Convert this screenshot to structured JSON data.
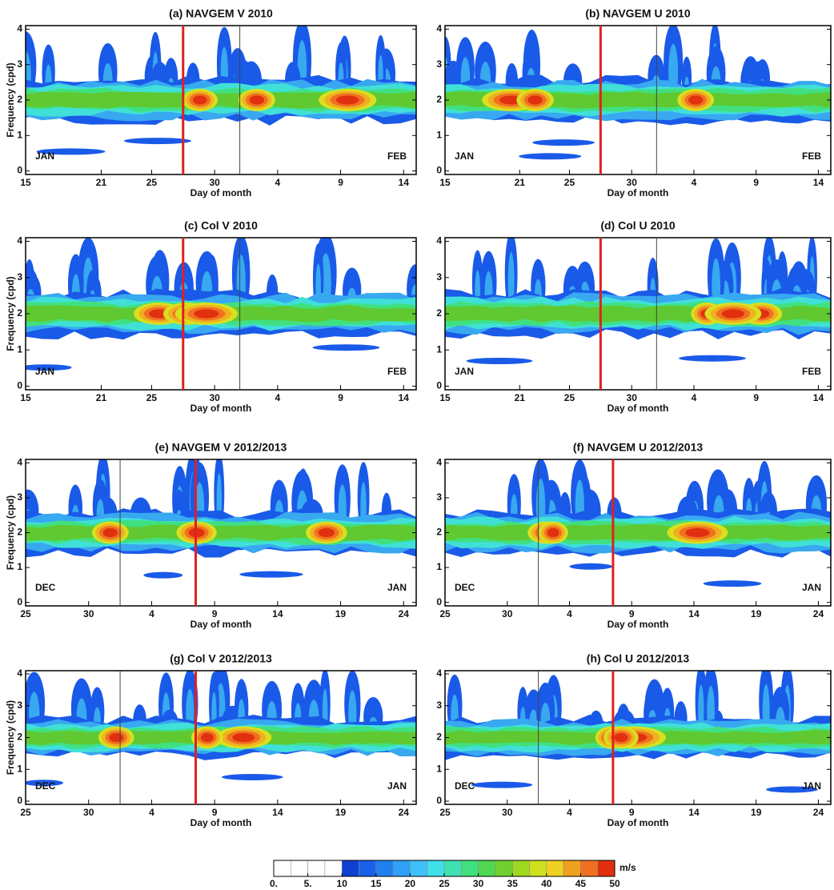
{
  "chart_data": [
    {
      "type": "contour",
      "title": "(a) NAVGEM V 2010",
      "xlabel": "Day of month",
      "ylabel": "Frequency (cpd)",
      "month_labels": [
        "JAN",
        "FEB"
      ],
      "xlim": [
        0,
        31
      ],
      "xticks": [
        {
          "value": 0,
          "label": "15"
        },
        {
          "value": 6,
          "label": "21"
        },
        {
          "value": 10,
          "label": "25"
        },
        {
          "value": 15,
          "label": "30"
        },
        {
          "value": 20,
          "label": "4"
        },
        {
          "value": 25,
          "label": "9"
        },
        {
          "value": 30,
          "label": "14"
        }
      ],
      "ylim": [
        -0.1,
        4.1
      ],
      "yticks": [
        0,
        1,
        2,
        3,
        4
      ],
      "vlines": [
        {
          "x": 12.5,
          "color": "#e02020"
        },
        {
          "x": 17,
          "color": "#444444"
        }
      ]
    },
    {
      "type": "contour",
      "title": "(b) NAVGEM U 2010",
      "xlabel": "Day of month",
      "month_labels": [
        "JAN",
        "FEB"
      ],
      "xlim": [
        0,
        31
      ],
      "xticks": [
        {
          "value": 0,
          "label": "15"
        },
        {
          "value": 6,
          "label": "21"
        },
        {
          "value": 10,
          "label": "25"
        },
        {
          "value": 15,
          "label": "30"
        },
        {
          "value": 20,
          "label": "4"
        },
        {
          "value": 25,
          "label": "9"
        },
        {
          "value": 30,
          "label": "14"
        }
      ],
      "ylim": [
        -0.1,
        4.1
      ],
      "yticks": [
        0,
        1,
        2,
        3,
        4
      ],
      "vlines": [
        {
          "x": 12.5,
          "color": "#e02020"
        },
        {
          "x": 17,
          "color": "#444444"
        }
      ]
    },
    {
      "type": "contour",
      "title": "(c) Col V 2010",
      "xlabel": "Day of month",
      "ylabel": "Frequency (cpd)",
      "month_labels": [
        "JAN",
        "FEB"
      ],
      "xlim": [
        0,
        31
      ],
      "xticks": [
        {
          "value": 0,
          "label": "15"
        },
        {
          "value": 6,
          "label": "21"
        },
        {
          "value": 10,
          "label": "25"
        },
        {
          "value": 15,
          "label": "30"
        },
        {
          "value": 20,
          "label": "4"
        },
        {
          "value": 25,
          "label": "9"
        },
        {
          "value": 30,
          "label": "14"
        }
      ],
      "ylim": [
        -0.1,
        4.1
      ],
      "yticks": [
        0,
        1,
        2,
        3,
        4
      ],
      "vlines": [
        {
          "x": 12.5,
          "color": "#e02020"
        },
        {
          "x": 17,
          "color": "#444444"
        }
      ]
    },
    {
      "type": "contour",
      "title": "(d) Col U 2010",
      "xlabel": "Day of month",
      "month_labels": [
        "JAN",
        "FEB"
      ],
      "xlim": [
        0,
        31
      ],
      "xticks": [
        {
          "value": 0,
          "label": "15"
        },
        {
          "value": 6,
          "label": "21"
        },
        {
          "value": 10,
          "label": "25"
        },
        {
          "value": 15,
          "label": "30"
        },
        {
          "value": 20,
          "label": "4"
        },
        {
          "value": 25,
          "label": "9"
        },
        {
          "value": 30,
          "label": "14"
        }
      ],
      "ylim": [
        -0.1,
        4.1
      ],
      "yticks": [
        0,
        1,
        2,
        3,
        4
      ],
      "vlines": [
        {
          "x": 12.5,
          "color": "#e02020"
        },
        {
          "x": 17,
          "color": "#444444"
        }
      ]
    },
    {
      "type": "contour",
      "title": "(e) NAVGEM V 2012/2013",
      "xlabel": "Day of month",
      "ylabel": "Frequency (cpd)",
      "month_labels": [
        "DEC",
        "JAN"
      ],
      "xlim": [
        0,
        31
      ],
      "xticks": [
        {
          "value": 0,
          "label": "25"
        },
        {
          "value": 5,
          "label": "30"
        },
        {
          "value": 10,
          "label": "4"
        },
        {
          "value": 15,
          "label": "9"
        },
        {
          "value": 20,
          "label": "14"
        },
        {
          "value": 25,
          "label": "19"
        },
        {
          "value": 30,
          "label": "24"
        }
      ],
      "ylim": [
        -0.1,
        4.1
      ],
      "yticks": [
        0,
        1,
        2,
        3,
        4
      ],
      "vlines": [
        {
          "x": 13.5,
          "color": "#e02020"
        },
        {
          "x": 7.5,
          "color": "#444444"
        }
      ]
    },
    {
      "type": "contour",
      "title": "(f) NAVGEM U 2012/2013",
      "xlabel": "Day of month",
      "month_labels": [
        "DEC",
        "JAN"
      ],
      "xlim": [
        0,
        31
      ],
      "xticks": [
        {
          "value": 0,
          "label": "25"
        },
        {
          "value": 5,
          "label": "30"
        },
        {
          "value": 10,
          "label": "4"
        },
        {
          "value": 15,
          "label": "9"
        },
        {
          "value": 20,
          "label": "14"
        },
        {
          "value": 25,
          "label": "19"
        },
        {
          "value": 30,
          "label": "24"
        }
      ],
      "ylim": [
        -0.1,
        4.1
      ],
      "yticks": [
        0,
        1,
        2,
        3,
        4
      ],
      "vlines": [
        {
          "x": 13.5,
          "color": "#e02020"
        },
        {
          "x": 7.5,
          "color": "#444444"
        }
      ]
    },
    {
      "type": "contour",
      "title": "(g) Col V 2012/2013",
      "xlabel": "Day of month",
      "ylabel": "Frequency (cpd)",
      "month_labels": [
        "DEC",
        "JAN"
      ],
      "xlim": [
        0,
        31
      ],
      "xticks": [
        {
          "value": 0,
          "label": "25"
        },
        {
          "value": 5,
          "label": "30"
        },
        {
          "value": 10,
          "label": "4"
        },
        {
          "value": 15,
          "label": "9"
        },
        {
          "value": 20,
          "label": "14"
        },
        {
          "value": 25,
          "label": "19"
        },
        {
          "value": 30,
          "label": "24"
        }
      ],
      "ylim": [
        -0.1,
        4.1
      ],
      "yticks": [
        0,
        1,
        2,
        3,
        4
      ],
      "vlines": [
        {
          "x": 13.5,
          "color": "#e02020"
        },
        {
          "x": 7.5,
          "color": "#444444"
        }
      ]
    },
    {
      "type": "contour",
      "title": "(h) Col U 2012/2013",
      "xlabel": "Day of month",
      "month_labels": [
        "DEC",
        "JAN"
      ],
      "xlim": [
        0,
        31
      ],
      "xticks": [
        {
          "value": 0,
          "label": "25"
        },
        {
          "value": 5,
          "label": "30"
        },
        {
          "value": 10,
          "label": "4"
        },
        {
          "value": 15,
          "label": "9"
        },
        {
          "value": 20,
          "label": "14"
        },
        {
          "value": 25,
          "label": "19"
        },
        {
          "value": 30,
          "label": "24"
        }
      ],
      "ylim": [
        -0.1,
        4.1
      ],
      "yticks": [
        0,
        1,
        2,
        3,
        4
      ],
      "vlines": [
        {
          "x": 13.5,
          "color": "#e02020"
        },
        {
          "x": 7.5,
          "color": "#444444"
        }
      ]
    }
  ],
  "colorbar": {
    "label": "m/s",
    "lim": [
      0,
      50
    ],
    "ticks": [
      {
        "value": 0,
        "label": "0."
      },
      {
        "value": 5,
        "label": "5."
      },
      10,
      15,
      20,
      25,
      30,
      35,
      40,
      45,
      50
    ],
    "colors": [
      "#ffffff",
      "#ffffff",
      "#ffffff",
      "#ffffff",
      "#1040d0",
      "#1860e8",
      "#2080f0",
      "#30a0f8",
      "#40c0f8",
      "#40e0e8",
      "#40e0b0",
      "#40e080",
      "#50d850",
      "#70d030",
      "#a0d820",
      "#d0e020",
      "#f0d020",
      "#f0a020",
      "#f07020",
      "#e03010"
    ]
  }
}
